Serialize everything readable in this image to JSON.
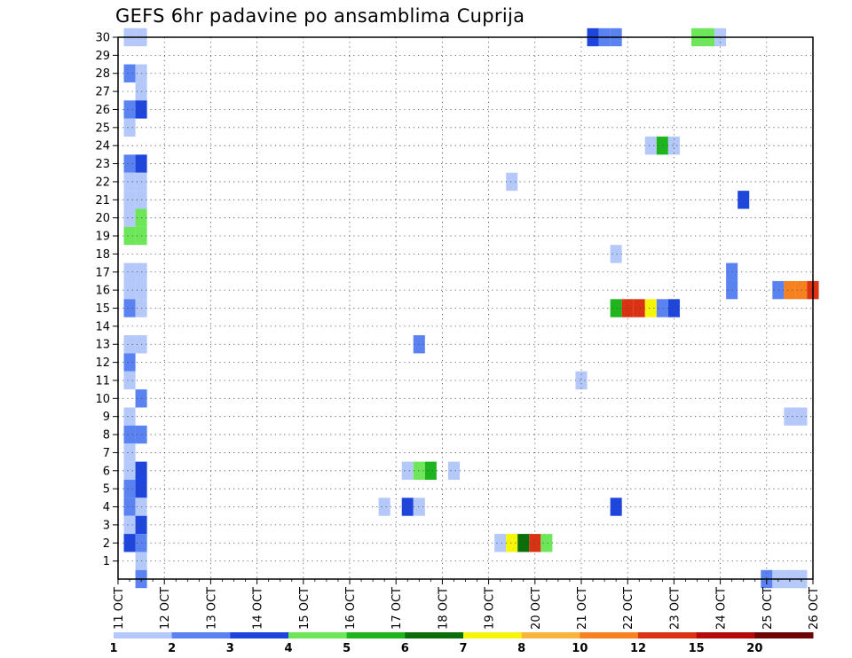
{
  "chart_data": {
    "type": "heatmap",
    "title": "GEFS 6hr padavine po ansamblima Cuprija",
    "xlabel": "",
    "ylabel": "",
    "x_tick_labels": [
      "11 OCT",
      "12 OCT",
      "13 OCT",
      "14 OCT",
      "15 OCT",
      "16 OCT",
      "17 OCT",
      "18 OCT",
      "19 OCT",
      "20 OCT",
      "21 OCT",
      "22 OCT",
      "23 OCT",
      "24 OCT",
      "25 OCT",
      "26 OCT"
    ],
    "x_range_days": [
      11,
      26
    ],
    "y_tick_labels": [
      "1",
      "2",
      "3",
      "4",
      "5",
      "6",
      "7",
      "8",
      "9",
      "10",
      "11",
      "12",
      "13",
      "14",
      "15",
      "16",
      "17",
      "18",
      "19",
      "20",
      "21",
      "22",
      "23",
      "24",
      "25",
      "26",
      "27",
      "28",
      "29",
      "30"
    ],
    "y_range": [
      0,
      30
    ],
    "grid": true,
    "time_step_hours": 6,
    "legend": {
      "placement": "bottom",
      "colors": [
        "#b4c8fa",
        "#5a82f0",
        "#1e46dc",
        "#6ee65a",
        "#1eb41e",
        "#0a6e0a",
        "#f5f50a",
        "#fab43c",
        "#f5821e",
        "#dc3214",
        "#b40a0a",
        "#6e0505"
      ],
      "labels": [
        "1",
        "2",
        "3",
        "4",
        "5",
        "6",
        "7",
        "8",
        "10",
        "12",
        "15",
        "20"
      ]
    },
    "cells": [
      {
        "day": 11.25,
        "m": 30,
        "c": 1
      },
      {
        "day": 11.5,
        "m": 30,
        "c": 1
      },
      {
        "day": 21.25,
        "m": 30,
        "c": 3
      },
      {
        "day": 21.5,
        "m": 30,
        "c": 2
      },
      {
        "day": 21.75,
        "m": 30,
        "c": 2
      },
      {
        "day": 23.5,
        "m": 30,
        "c": 4
      },
      {
        "day": 23.75,
        "m": 30,
        "c": 4
      },
      {
        "day": 24.0,
        "m": 30,
        "c": 1
      },
      {
        "day": 11.25,
        "m": 28,
        "c": 2
      },
      {
        "day": 11.5,
        "m": 28,
        "c": 1
      },
      {
        "day": 11.5,
        "m": 27,
        "c": 1
      },
      {
        "day": 11.25,
        "m": 26,
        "c": 2
      },
      {
        "day": 11.5,
        "m": 26,
        "c": 3
      },
      {
        "day": 11.25,
        "m": 25,
        "c": 1
      },
      {
        "day": 22.5,
        "m": 24,
        "c": 1
      },
      {
        "day": 22.75,
        "m": 24,
        "c": 5
      },
      {
        "day": 23.0,
        "m": 24,
        "c": 1
      },
      {
        "day": 11.25,
        "m": 23,
        "c": 2
      },
      {
        "day": 11.5,
        "m": 23,
        "c": 3
      },
      {
        "day": 11.25,
        "m": 22,
        "c": 1
      },
      {
        "day": 11.5,
        "m": 22,
        "c": 1
      },
      {
        "day": 19.5,
        "m": 22,
        "c": 1
      },
      {
        "day": 11.25,
        "m": 21,
        "c": 1
      },
      {
        "day": 11.5,
        "m": 21,
        "c": 1
      },
      {
        "day": 24.5,
        "m": 21,
        "c": 3
      },
      {
        "day": 11.25,
        "m": 20,
        "c": 1
      },
      {
        "day": 11.5,
        "m": 20,
        "c": 4
      },
      {
        "day": 11.25,
        "m": 19,
        "c": 4
      },
      {
        "day": 11.5,
        "m": 19,
        "c": 4
      },
      {
        "day": 21.75,
        "m": 18,
        "c": 1
      },
      {
        "day": 11.25,
        "m": 17,
        "c": 1
      },
      {
        "day": 11.5,
        "m": 17,
        "c": 1
      },
      {
        "day": 24.25,
        "m": 17,
        "c": 2
      },
      {
        "day": 11.25,
        "m": 16,
        "c": 1
      },
      {
        "day": 11.5,
        "m": 16,
        "c": 1
      },
      {
        "day": 24.25,
        "m": 16,
        "c": 2
      },
      {
        "day": 25.25,
        "m": 16,
        "c": 2
      },
      {
        "day": 25.5,
        "m": 16,
        "c": 9
      },
      {
        "day": 25.75,
        "m": 16,
        "c": 9
      },
      {
        "day": 26.0,
        "m": 16,
        "c": 10
      },
      {
        "day": 11.25,
        "m": 15,
        "c": 2
      },
      {
        "day": 11.5,
        "m": 15,
        "c": 1
      },
      {
        "day": 21.75,
        "m": 15,
        "c": 5
      },
      {
        "day": 22.0,
        "m": 15,
        "c": 10
      },
      {
        "day": 22.25,
        "m": 15,
        "c": 10
      },
      {
        "day": 22.5,
        "m": 15,
        "c": 7
      },
      {
        "day": 22.75,
        "m": 15,
        "c": 2
      },
      {
        "day": 23.0,
        "m": 15,
        "c": 3
      },
      {
        "day": 11.25,
        "m": 13,
        "c": 1
      },
      {
        "day": 11.5,
        "m": 13,
        "c": 1
      },
      {
        "day": 17.5,
        "m": 13,
        "c": 2
      },
      {
        "day": 11.25,
        "m": 12,
        "c": 2
      },
      {
        "day": 11.25,
        "m": 11,
        "c": 1
      },
      {
        "day": 21.0,
        "m": 11,
        "c": 1
      },
      {
        "day": 11.5,
        "m": 10,
        "c": 2
      },
      {
        "day": 11.25,
        "m": 9,
        "c": 1
      },
      {
        "day": 25.5,
        "m": 9,
        "c": 1
      },
      {
        "day": 25.75,
        "m": 9,
        "c": 1
      },
      {
        "day": 11.25,
        "m": 8,
        "c": 2
      },
      {
        "day": 11.5,
        "m": 8,
        "c": 2
      },
      {
        "day": 11.25,
        "m": 7,
        "c": 1
      },
      {
        "day": 11.25,
        "m": 6,
        "c": 1
      },
      {
        "day": 11.5,
        "m": 6,
        "c": 3
      },
      {
        "day": 17.25,
        "m": 6,
        "c": 1
      },
      {
        "day": 17.5,
        "m": 6,
        "c": 4
      },
      {
        "day": 17.75,
        "m": 6,
        "c": 5
      },
      {
        "day": 18.25,
        "m": 6,
        "c": 1
      },
      {
        "day": 11.25,
        "m": 5,
        "c": 2
      },
      {
        "day": 11.5,
        "m": 5,
        "c": 3
      },
      {
        "day": 11.25,
        "m": 4,
        "c": 2
      },
      {
        "day": 11.5,
        "m": 4,
        "c": 1
      },
      {
        "day": 16.75,
        "m": 4,
        "c": 1
      },
      {
        "day": 17.25,
        "m": 4,
        "c": 3
      },
      {
        "day": 17.5,
        "m": 4,
        "c": 1
      },
      {
        "day": 21.75,
        "m": 4,
        "c": 3
      },
      {
        "day": 11.25,
        "m": 3,
        "c": 1
      },
      {
        "day": 11.5,
        "m": 3,
        "c": 3
      },
      {
        "day": 11.25,
        "m": 2,
        "c": 3
      },
      {
        "day": 11.5,
        "m": 2,
        "c": 2
      },
      {
        "day": 19.25,
        "m": 2,
        "c": 1
      },
      {
        "day": 19.5,
        "m": 2,
        "c": 7
      },
      {
        "day": 19.75,
        "m": 2,
        "c": 6
      },
      {
        "day": 20.0,
        "m": 2,
        "c": 10
      },
      {
        "day": 20.25,
        "m": 2,
        "c": 4
      },
      {
        "day": 11.5,
        "m": 1,
        "c": 1
      },
      {
        "day": 11.5,
        "m": 0,
        "c": 2
      },
      {
        "day": 25.0,
        "m": 0,
        "c": 2
      },
      {
        "day": 25.25,
        "m": 0,
        "c": 1
      },
      {
        "day": 25.5,
        "m": 0,
        "c": 1
      },
      {
        "day": 25.75,
        "m": 0,
        "c": 1
      }
    ]
  }
}
